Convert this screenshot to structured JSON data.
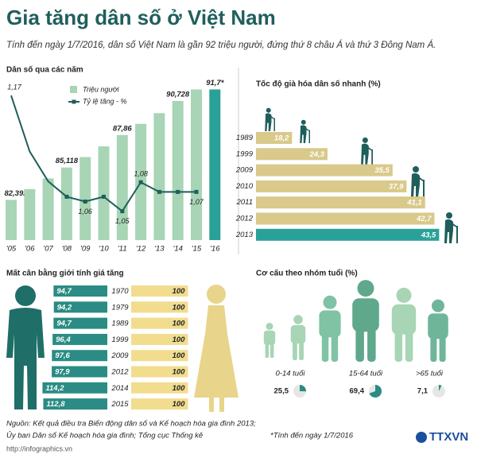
{
  "header": {
    "title": "Gia tăng dân số ở Việt Nam",
    "subtitle": "Tính đến ngày 1/7/2016, dân số Việt Nam là gần 92 triệu người, đứng thứ 8 châu Á và thứ 3 Đông Nam Á."
  },
  "chart_data": [
    {
      "type": "combo",
      "title": "Dân số qua các năm",
      "categories": [
        "'05",
        "'06",
        "'07",
        "'08",
        "'09",
        "'10",
        "'11",
        "'12",
        "'13",
        "'14",
        "'15",
        "'16"
      ],
      "series": [
        {
          "name": "Triệu người",
          "type": "bar",
          "colors": [
            "#a8d5b5",
            "#a8d5b5",
            "#a8d5b5",
            "#a8d5b5",
            "#a8d5b5",
            "#a8d5b5",
            "#a8d5b5",
            "#a8d5b5",
            "#a8d5b5",
            "#a8d5b5",
            "#a8d5b5",
            "#2aa198"
          ],
          "values": [
            82.392,
            83.3,
            84.2,
            85.118,
            86.0,
            86.9,
            87.86,
            88.8,
            89.7,
            90.728,
            91.7,
            91.7
          ],
          "value_labels": [
            "82,392",
            null,
            null,
            "85,118",
            null,
            null,
            "87,86",
            null,
            null,
            "90,728",
            null,
            "91,7*"
          ]
        },
        {
          "name": "Tỷ lệ tăng - %",
          "type": "line",
          "axis": "y2",
          "color": "#1f5f5b",
          "values": [
            1.17,
            1.112,
            1.081,
            1.065,
            1.06,
            1.065,
            1.05,
            1.08,
            1.07,
            1.07,
            1.07,
            null
          ],
          "value_labels": [
            "1,17",
            null,
            null,
            null,
            "1,06",
            null,
            "1,05",
            "1,08",
            null,
            null,
            "1,07",
            null
          ]
        }
      ],
      "ylim": [
        79,
        92
      ],
      "y2lim": [
        1.02,
        1.18
      ]
    },
    {
      "type": "hbar",
      "title": "Tốc độ già hóa dân số nhanh (%)",
      "categories": [
        "1989",
        "1999",
        "2009",
        "2010",
        "2011",
        "2012",
        "2013"
      ],
      "values": [
        18.2,
        24.3,
        35.5,
        37.9,
        41.1,
        42.7,
        43.5
      ],
      "value_labels": [
        "18,2",
        "24,3",
        "35,5",
        "37,9",
        "41,1",
        "42,7",
        "43,5"
      ],
      "colors": [
        "#d9c98a",
        "#d9c98a",
        "#d9c98a",
        "#d9c98a",
        "#d9c98a",
        "#d9c98a",
        "#2aa198"
      ],
      "xlim": [
        12,
        44
      ]
    },
    {
      "type": "paired",
      "title": "Mất cân bằng giới tính giá tăng",
      "categories": [
        "1970",
        "1979",
        "1989",
        "1999",
        "2009",
        "2012",
        "2014",
        "2015"
      ],
      "series": [
        {
          "color": "#2a8c84",
          "values": [
            94.7,
            94.2,
            94.7,
            96.4,
            97.6,
            97.9,
            114.2,
            112.8
          ],
          "value_labels": [
            "94,7",
            "94,2",
            "94,7",
            "96,4",
            "97,6",
            "97,9",
            "114,2",
            "112,8"
          ]
        },
        {
          "color": "#f2dc8e",
          "values": [
            100,
            100,
            100,
            100,
            100,
            100,
            100,
            100
          ]
        }
      ],
      "xlim": [
        0,
        140
      ]
    },
    {
      "type": "pies",
      "title": "Cơ cấu theo nhóm tuổi (%)",
      "categories": [
        "0-14 tuổi",
        "15-64 tuổi",
        ">65 tuổi"
      ],
      "values": [
        25.5,
        69.4,
        7.1
      ],
      "value_labels": [
        "25,5",
        "69,4",
        "7,1"
      ],
      "color": "#2a8c84",
      "note": "*Tính đến ngày 1/7/2016"
    }
  ],
  "footer": {
    "source": [
      "Nguồn: Kết quả điều tra Biến động dân số và Kế hoạch hóa gia đình 2013;",
      "Ủy ban Dân số Kế hoạch hóa gia đình; Tổng cục Thống kê"
    ],
    "url": "http://infographics.vn",
    "logo": "TTXVN"
  }
}
